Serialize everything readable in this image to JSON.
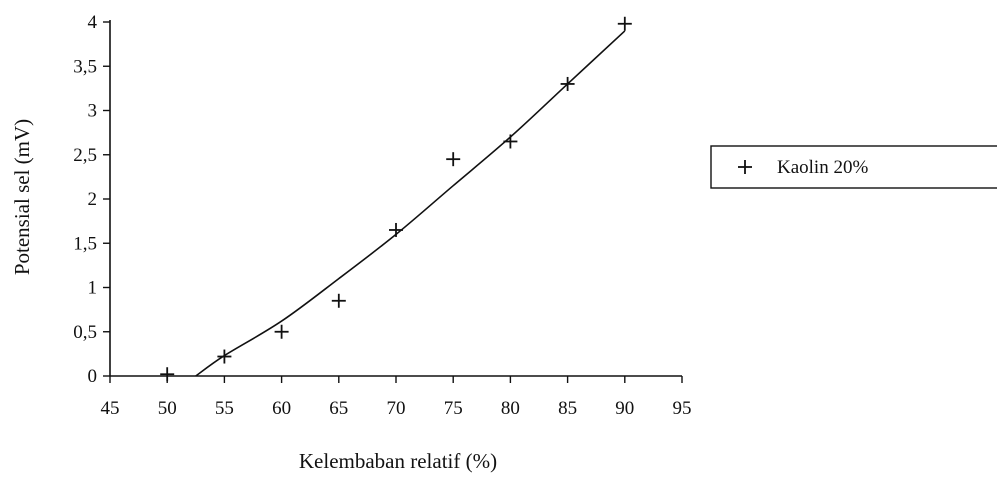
{
  "chart_data": {
    "type": "scatter",
    "title": "",
    "xlabel": "Kelembaban relatif (%)",
    "ylabel": "Potensial sel (mV)",
    "xlim": [
      45,
      95
    ],
    "ylim": [
      0,
      4
    ],
    "x_ticks": [
      45,
      50,
      55,
      60,
      65,
      70,
      75,
      80,
      85,
      90,
      95
    ],
    "x_tick_labels": [
      "45",
      "50",
      "55",
      "60",
      "65",
      "70",
      "75",
      "80",
      "85",
      "90",
      "95"
    ],
    "y_ticks": [
      0,
      0.5,
      1,
      1.5,
      2,
      2.5,
      3,
      3.5,
      4
    ],
    "y_tick_labels": [
      "0",
      "0,5",
      "1",
      "1,5",
      "2",
      "2,5",
      "3",
      "3,5",
      "4"
    ],
    "grid": false,
    "legend_position": "right",
    "series": [
      {
        "name": "Kaolin 20%",
        "marker": "+",
        "color": "#111111",
        "x": [
          50,
          55,
          60,
          65,
          70,
          75,
          80,
          85,
          90
        ],
        "y": [
          0.02,
          0.22,
          0.5,
          0.85,
          1.65,
          2.45,
          2.65,
          3.3,
          3.98
        ]
      }
    ],
    "trendline": {
      "color": "#111111",
      "x": [
        52.5,
        55,
        60,
        65,
        70,
        75,
        80,
        85,
        90
      ],
      "y": [
        0,
        0.23,
        0.62,
        1.1,
        1.6,
        2.15,
        2.7,
        3.3,
        3.9
      ]
    }
  }
}
